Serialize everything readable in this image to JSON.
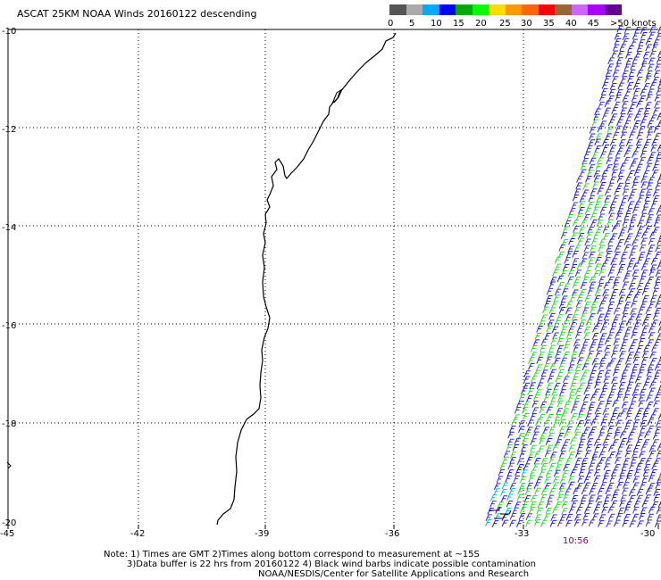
{
  "title": "ASCAT 25KM NOAA Winds 20160122 descending",
  "colorbar": {
    "colors": [
      "#555555",
      "#aaaaaa",
      "#00aaff",
      "#0000ff",
      "#00aa00",
      "#00ff00",
      "#ffdd00",
      "#ff9900",
      "#ff6600",
      "#ff0000",
      "#996633",
      "#cc66ff",
      "#aa00ff",
      "#660099"
    ],
    "labels": [
      "0",
      "5",
      "10",
      "15",
      "20",
      "25",
      "30",
      "35",
      "40",
      "45",
      ">50 knots"
    ]
  },
  "axes": {
    "lon_ticks": [
      "-45",
      "-42",
      "-39",
      "-36",
      "-33",
      "-30"
    ],
    "lat_ticks": [
      "-10",
      "-12",
      "-14",
      "-16",
      "-18",
      "-20"
    ]
  },
  "timestamp": "10:56",
  "notes": {
    "line1": "Note: 1) Times are GMT 2)Times along bottom correspond to measurement at ~15S",
    "line2": "3)Data buffer is 22 hrs from 20160122 4) Black wind barbs indicate possible contamination",
    "line3": "NOAA/NESDIS/Center for Satellite Applications and Research"
  },
  "icons": {
    "coastline": "coastline-icon",
    "wind_barb": "wind-barb-icon"
  }
}
